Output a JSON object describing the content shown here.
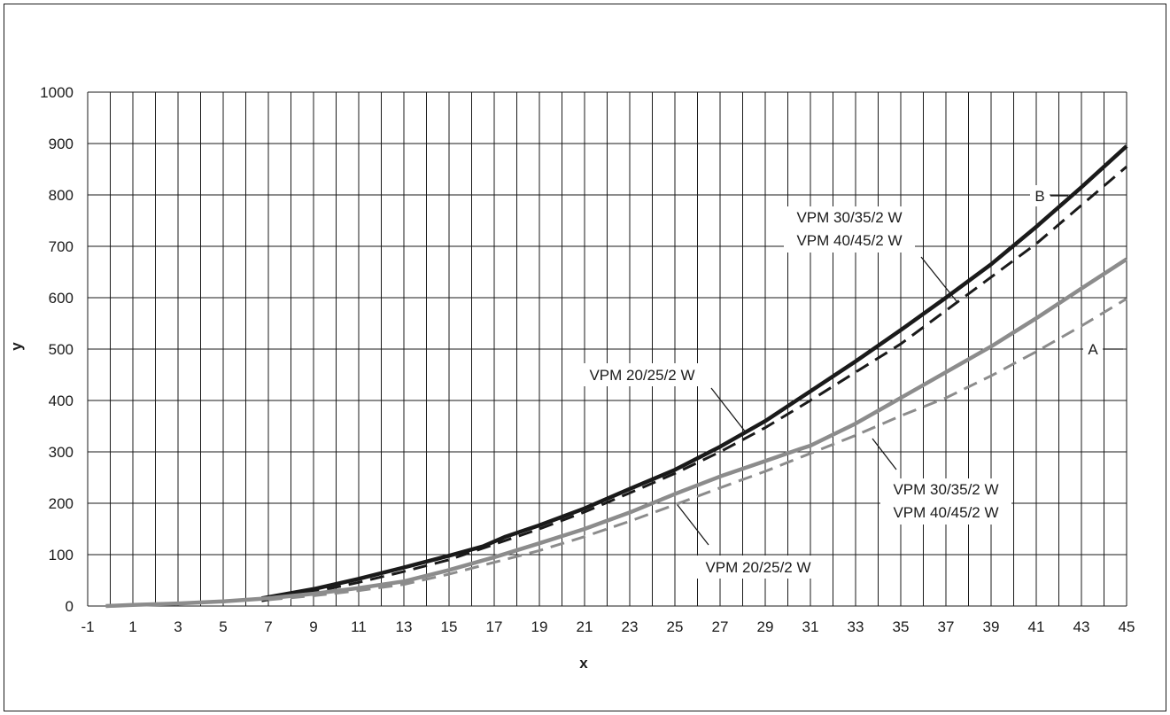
{
  "chart_data": {
    "type": "line",
    "xlabel": "x",
    "ylabel": "y",
    "xlim": [
      -1,
      45
    ],
    "ylim": [
      0,
      1000
    ],
    "x_ticks": [
      -1,
      1,
      3,
      5,
      7,
      9,
      11,
      13,
      15,
      17,
      19,
      21,
      23,
      25,
      27,
      29,
      31,
      33,
      35,
      37,
      39,
      41,
      43,
      45
    ],
    "y_ticks": [
      0,
      100,
      200,
      300,
      400,
      500,
      600,
      700,
      800,
      900,
      1000
    ],
    "grid": true,
    "series": [
      {
        "group": "B",
        "model": "VPM 20/25/2 W",
        "color": "#1a1a1a",
        "dash": "solid",
        "points": [
          [
            6.7,
            15
          ],
          [
            9,
            33
          ],
          [
            11,
            53
          ],
          [
            13,
            75
          ],
          [
            15,
            98
          ],
          [
            16.5,
            116
          ],
          [
            17.5,
            135
          ],
          [
            19,
            157
          ],
          [
            21,
            190
          ],
          [
            23,
            228
          ],
          [
            25,
            265
          ],
          [
            27,
            310
          ],
          [
            29,
            360
          ],
          [
            31,
            418
          ],
          [
            33,
            476
          ],
          [
            35,
            537
          ],
          [
            37,
            600
          ],
          [
            39,
            665
          ],
          [
            41,
            738
          ],
          [
            43,
            815
          ],
          [
            45,
            895
          ]
        ]
      },
      {
        "group": "B",
        "model": "VPM 30/35/2 W / VPM 40/45/2 W",
        "color": "#1a1a1a",
        "dash": "dashed",
        "points": [
          [
            6.7,
            10
          ],
          [
            9,
            27
          ],
          [
            11,
            46
          ],
          [
            13,
            67
          ],
          [
            15,
            90
          ],
          [
            17,
            120
          ],
          [
            19,
            150
          ],
          [
            21,
            183
          ],
          [
            23,
            220
          ],
          [
            25,
            258
          ],
          [
            27,
            300
          ],
          [
            29,
            347
          ],
          [
            31,
            400
          ],
          [
            33,
            455
          ],
          [
            35,
            510
          ],
          [
            37,
            575
          ],
          [
            39,
            640
          ],
          [
            41,
            705
          ],
          [
            43,
            780
          ],
          [
            45,
            855
          ]
        ]
      },
      {
        "group": "A",
        "model": "VPM 20/25/2 W",
        "color": "#8c8c8c",
        "dash": "solid",
        "points": [
          [
            -0.2,
            0
          ],
          [
            1,
            2
          ],
          [
            3,
            5
          ],
          [
            5,
            9
          ],
          [
            7,
            15
          ],
          [
            9,
            24
          ],
          [
            11,
            35
          ],
          [
            13,
            48
          ],
          [
            15,
            70
          ],
          [
            17,
            95
          ],
          [
            19,
            122
          ],
          [
            21,
            150
          ],
          [
            23,
            182
          ],
          [
            25,
            218
          ],
          [
            27,
            252
          ],
          [
            29,
            282
          ],
          [
            30.5,
            305
          ],
          [
            31,
            312
          ],
          [
            33,
            355
          ],
          [
            35,
            405
          ],
          [
            37,
            455
          ],
          [
            39,
            505
          ],
          [
            41,
            560
          ],
          [
            43,
            618
          ],
          [
            45,
            675
          ]
        ]
      },
      {
        "group": "A",
        "model": "VPM 30/35/2 W / VPM 40/45/2 W",
        "color": "#8c8c8c",
        "dash": "dashed",
        "points": [
          [
            7,
            12
          ],
          [
            9,
            20
          ],
          [
            11,
            30
          ],
          [
            13,
            42
          ],
          [
            15,
            62
          ],
          [
            17,
            85
          ],
          [
            19,
            108
          ],
          [
            21,
            135
          ],
          [
            23,
            165
          ],
          [
            25,
            197
          ],
          [
            27,
            230
          ],
          [
            29,
            262
          ],
          [
            31,
            297
          ],
          [
            33,
            332
          ],
          [
            35,
            370
          ],
          [
            37,
            405
          ],
          [
            39,
            448
          ],
          [
            41,
            495
          ],
          [
            43,
            545
          ],
          [
            45,
            598
          ]
        ]
      }
    ],
    "annotations": {
      "label_b": "B",
      "label_a": "A",
      "b_solid_model": "VPM 20/25/2 W",
      "b_dashed_model_line1": "VPM 30/35/2 W",
      "b_dashed_model_line2": "VPM 40/45/2 W",
      "a_solid_model": "VPM 20/25/2 W",
      "a_dashed_model_line1": "VPM 30/35/2 W",
      "a_dashed_model_line2": "VPM 40/45/2 W"
    }
  }
}
